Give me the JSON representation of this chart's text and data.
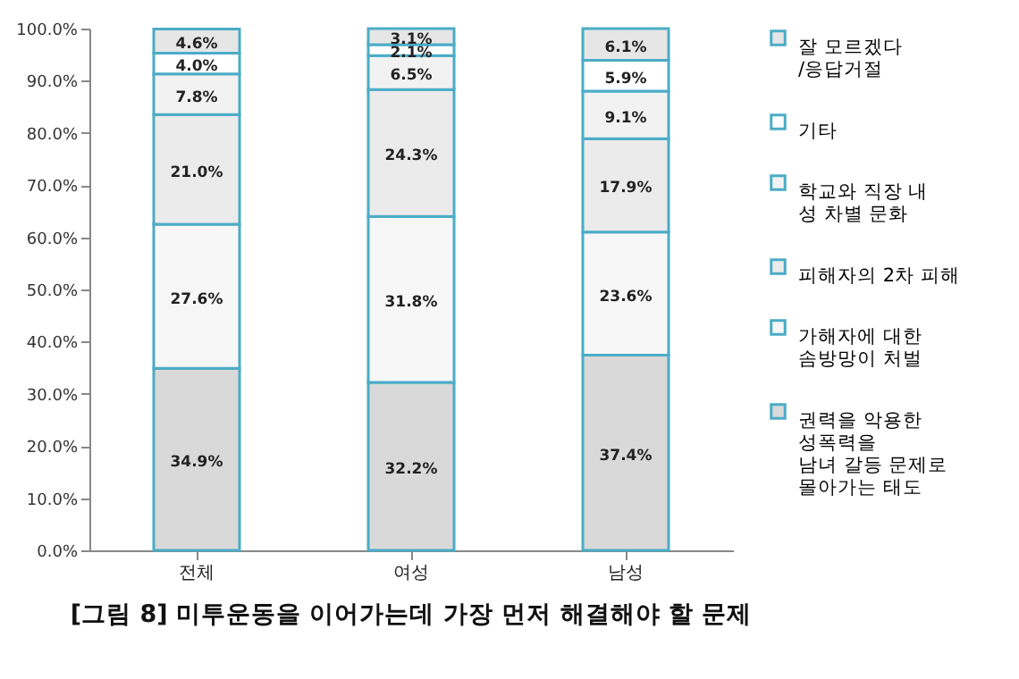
{
  "chart_data": {
    "type": "bar",
    "stacked": true,
    "title": "[그림 8] 미투운동을 이어가는데 가장 먼저 해결해야 할 문제",
    "categories": [
      "전체",
      "여성",
      "남성"
    ],
    "series": [
      {
        "name": "권력을 악용한\n성폭력을\n남녀 갈등 문제로\n몰아가는 태도",
        "color": "#d9d9d9",
        "values": [
          34.9,
          32.2,
          37.4
        ],
        "value_labels": [
          "34.9%",
          "32.2%",
          "37.4%"
        ]
      },
      {
        "name": "가해자에 대한\n솜방망이 처벌",
        "color": "#f7f7f7",
        "values": [
          27.6,
          31.8,
          23.6
        ],
        "value_labels": [
          "27.6%",
          "31.8%",
          "23.6%"
        ]
      },
      {
        "name": "피해자의 2차 피해",
        "color": "#ebebeb",
        "values": [
          21.0,
          24.3,
          17.9
        ],
        "value_labels": [
          "21.0%",
          "24.3%",
          "17.9%"
        ]
      },
      {
        "name": "학교와 직장 내\n성 차별 문화",
        "color": "#f2f2f2",
        "values": [
          7.8,
          6.5,
          9.1
        ],
        "value_labels": [
          "7.8%",
          "6.5%",
          "9.1%"
        ]
      },
      {
        "name": "기타",
        "color": "#ffffff",
        "values": [
          4.0,
          2.1,
          5.9
        ],
        "value_labels": [
          "4.0%",
          "2.1%",
          "5.9%"
        ]
      },
      {
        "name": "잘 모르겠다\n/응답거절",
        "color": "#e6e6e6",
        "values": [
          4.6,
          3.1,
          6.1
        ],
        "value_labels": [
          "4.6%",
          "3.1%",
          "6.1%"
        ]
      }
    ],
    "ylim": [
      0,
      100
    ],
    "yticks": [
      {
        "value": 0,
        "label": "0.0%"
      },
      {
        "value": 10,
        "label": "10.0%"
      },
      {
        "value": 20,
        "label": "20.0%"
      },
      {
        "value": 30,
        "label": "30.0%"
      },
      {
        "value": 40,
        "label": "40.0%"
      },
      {
        "value": 50,
        "label": "50.0%"
      },
      {
        "value": 60,
        "label": "60.0%"
      },
      {
        "value": 70,
        "label": "70.0%"
      },
      {
        "value": 80,
        "label": "80.0%"
      },
      {
        "value": 90,
        "label": "90.0%"
      },
      {
        "value": 100,
        "label": "100.0%"
      }
    ],
    "grid": false,
    "legend": "right"
  }
}
